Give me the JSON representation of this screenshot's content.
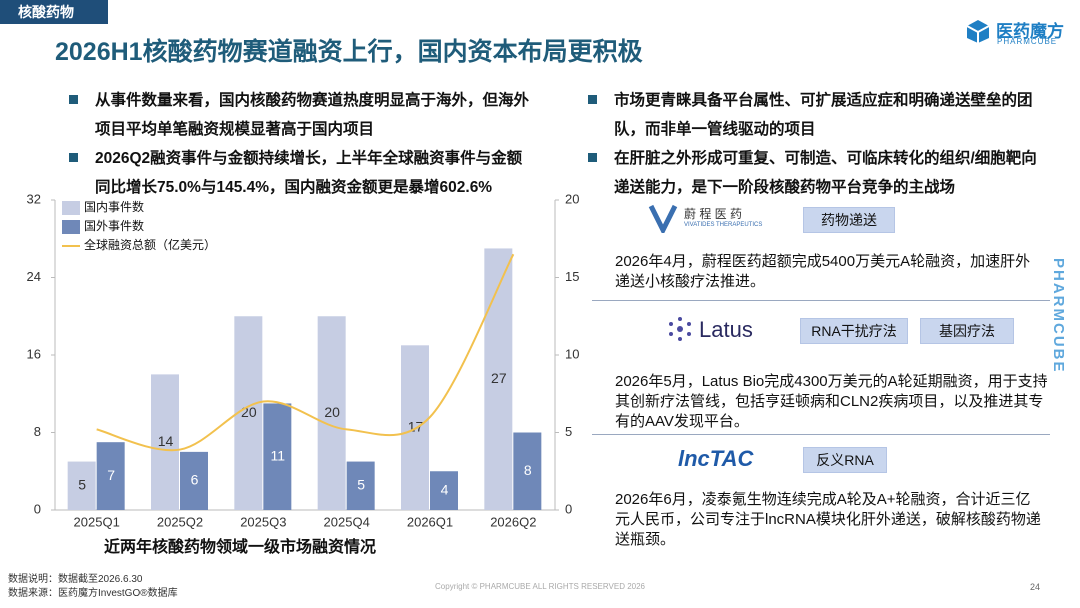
{
  "header": {
    "tag": "核酸药物",
    "title": "2026H1核酸药物赛道融资上行，国内资本布局更积极",
    "brand": "医药魔方",
    "brand_en": "PHARMCUBE",
    "side_brand": "PHARMCUBE"
  },
  "left_bullets": [
    "从事件数量来看，国内核酸药物赛道热度明显高于海外，但海外项目平均单笔融资规模显著高于国内项目",
    "2026Q2融资事件与金额持续增长，上半年全球融资事件与金额同比增长75.0%与145.4%，国内融资金额更是暴增602.6%"
  ],
  "right_bullets": [
    "市场更青睐具备平台属性、可扩展适应症和明确递送壁垒的团队，而非单一管线驱动的项目",
    "在肝脏之外形成可重复、可制造、可临床转化的组织/细胞靶向递送能力，是下一阶段核酸药物平台竞争的主战场"
  ],
  "chart_data": {
    "type": "bar",
    "title": "近两年核酸药物领域一级市场融资情况",
    "categories": [
      "2025Q1",
      "2025Q2",
      "2025Q3",
      "2025Q4",
      "2026Q1",
      "2026Q2"
    ],
    "series": [
      {
        "name": "国内事件数",
        "color": "#c6cde3",
        "values": [
          5,
          14,
          20,
          20,
          17,
          27
        ]
      },
      {
        "name": "国外事件数",
        "color": "#6f88b8",
        "values": [
          7,
          6,
          11,
          5,
          4,
          8
        ]
      },
      {
        "name": "全球融资总额（亿美元）",
        "color": "#f2c14e",
        "type": "line",
        "axis": "y2",
        "values": [
          5.2,
          3.9,
          7.0,
          5.2,
          6.0,
          16.5
        ]
      }
    ],
    "ylim": [
      0,
      32
    ],
    "yticks": [
      0,
      8,
      16,
      24,
      32
    ],
    "y2lim": [
      0,
      20
    ],
    "y2ticks": [
      0,
      5,
      10,
      15,
      20
    ],
    "legend": "top-left",
    "grid": false
  },
  "cases": [
    {
      "logo": "蔚 程 医 药",
      "logo_sub": "VIVATIDES THERAPEUTICS",
      "tags": [
        "药物递送"
      ],
      "text": "2026年4月，蔚程医药超额完成5400万美元A轮融资，加速肝外递送小核酸疗法推进。"
    },
    {
      "logo": "Latus",
      "tags": [
        "RNA干扰疗法",
        "基因疗法"
      ],
      "text": "2026年5月，Latus Bio完成4300万美元的A轮延期融资，用于支持其创新疗法管线，包括亨廷顿病和CLN2疾病项目，以及推进其专有的AAV发现平台。"
    },
    {
      "logo": "lncTAC",
      "tags": [
        "反义RNA"
      ],
      "text": "2026年6月，凌泰氪生物连续完成A轮及A+轮融资，合计近三亿元人民币，公司专注于lncRNA模块化肝外递送，破解核酸药物递送瓶颈。"
    }
  ],
  "footer": {
    "note": "数据说明：数据截至2026.6.30",
    "source": "数据来源：医药魔方InvestGO®数据库",
    "copyright": "Copyright © PHARMCUBE ALL RIGHTS RESERVED 2026",
    "page": "24"
  }
}
